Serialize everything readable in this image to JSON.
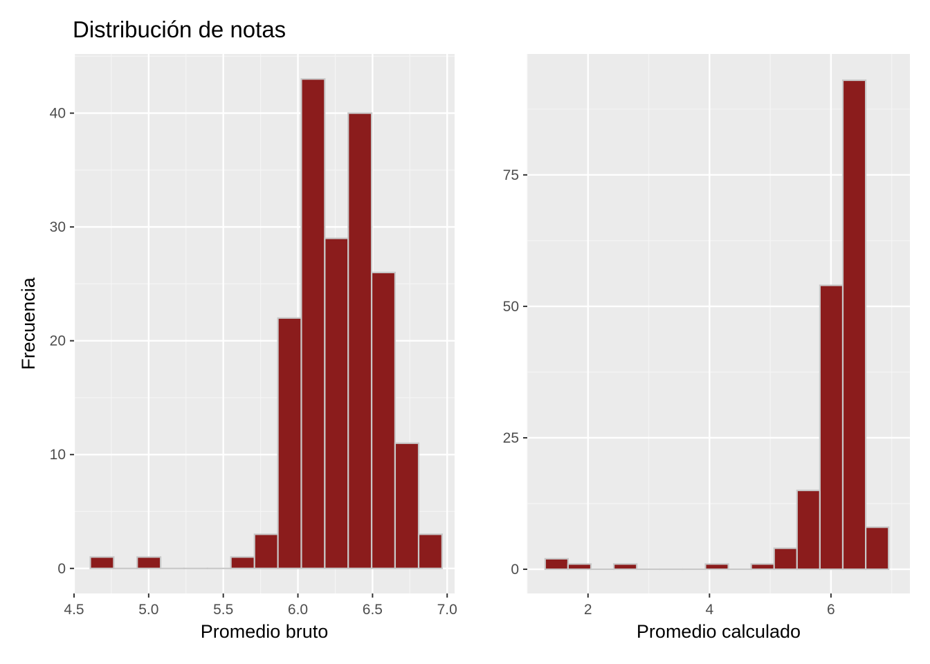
{
  "title": "Distribución de notas",
  "colors": {
    "panel": "#ebebeb",
    "grid_major": "#ffffff",
    "grid_minor": "#f5f5f5",
    "bar_fill": "#8b1c1c",
    "bar_stroke": "#c8c8c8",
    "tick": "#333333",
    "tick_text": "#4d4d4d"
  },
  "chart_data": [
    {
      "type": "bar",
      "title": "",
      "xlabel": "Promedio bruto",
      "ylabel": "Frecuencia",
      "xlim": [
        4.5,
        7.05
      ],
      "ylim": [
        -2.2,
        45.2
      ],
      "x_ticks": [
        4.5,
        5.0,
        5.5,
        6.0,
        6.5,
        7.0
      ],
      "x_tick_labels": [
        "4.5",
        "5.0",
        "5.5",
        "6.0",
        "6.5",
        "7.0"
      ],
      "y_ticks": [
        0,
        10,
        20,
        30,
        40
      ],
      "y_tick_labels": [
        "0",
        "10",
        "20",
        "30",
        "40"
      ],
      "bin_width": 0.1571,
      "bins": [
        {
          "x0": 4.609,
          "x1": 4.766,
          "count": 1
        },
        {
          "x0": 4.766,
          "x1": 4.923,
          "count": 0
        },
        {
          "x0": 4.923,
          "x1": 5.08,
          "count": 1
        },
        {
          "x0": 5.08,
          "x1": 5.237,
          "count": 0
        },
        {
          "x0": 5.237,
          "x1": 5.394,
          "count": 0
        },
        {
          "x0": 5.394,
          "x1": 5.551,
          "count": 0
        },
        {
          "x0": 5.551,
          "x1": 5.709,
          "count": 1
        },
        {
          "x0": 5.709,
          "x1": 5.866,
          "count": 3
        },
        {
          "x0": 5.866,
          "x1": 6.023,
          "count": 22
        },
        {
          "x0": 6.023,
          "x1": 6.18,
          "count": 43
        },
        {
          "x0": 6.18,
          "x1": 6.337,
          "count": 29
        },
        {
          "x0": 6.337,
          "x1": 6.494,
          "count": 40
        },
        {
          "x0": 6.494,
          "x1": 6.651,
          "count": 26
        },
        {
          "x0": 6.651,
          "x1": 6.809,
          "count": 11
        },
        {
          "x0": 6.809,
          "x1": 6.966,
          "count": 3
        }
      ]
    },
    {
      "type": "bar",
      "title": "",
      "xlabel": "Promedio calculado",
      "ylabel": "",
      "xlim": [
        1.0,
        7.3
      ],
      "ylim": [
        -4.6,
        98.0
      ],
      "x_ticks": [
        2,
        4,
        6
      ],
      "x_tick_labels": [
        "2",
        "4",
        "6"
      ],
      "y_ticks": [
        0,
        25,
        50,
        75
      ],
      "y_tick_labels": [
        "0",
        "25",
        "50",
        "75"
      ],
      "bin_width": 0.377,
      "bins": [
        {
          "x0": 1.294,
          "x1": 1.671,
          "count": 2
        },
        {
          "x0": 1.671,
          "x1": 2.048,
          "count": 1
        },
        {
          "x0": 2.048,
          "x1": 2.425,
          "count": 0
        },
        {
          "x0": 2.425,
          "x1": 2.802,
          "count": 1
        },
        {
          "x0": 2.802,
          "x1": 3.179,
          "count": 0
        },
        {
          "x0": 3.179,
          "x1": 3.556,
          "count": 0
        },
        {
          "x0": 3.556,
          "x1": 3.933,
          "count": 0
        },
        {
          "x0": 3.933,
          "x1": 4.31,
          "count": 1
        },
        {
          "x0": 4.31,
          "x1": 4.687,
          "count": 0
        },
        {
          "x0": 4.687,
          "x1": 5.064,
          "count": 1
        },
        {
          "x0": 5.064,
          "x1": 5.441,
          "count": 4
        },
        {
          "x0": 5.441,
          "x1": 5.818,
          "count": 15
        },
        {
          "x0": 5.818,
          "x1": 6.195,
          "count": 54
        },
        {
          "x0": 6.195,
          "x1": 6.572,
          "count": 93
        },
        {
          "x0": 6.572,
          "x1": 6.949,
          "count": 8
        }
      ]
    }
  ]
}
